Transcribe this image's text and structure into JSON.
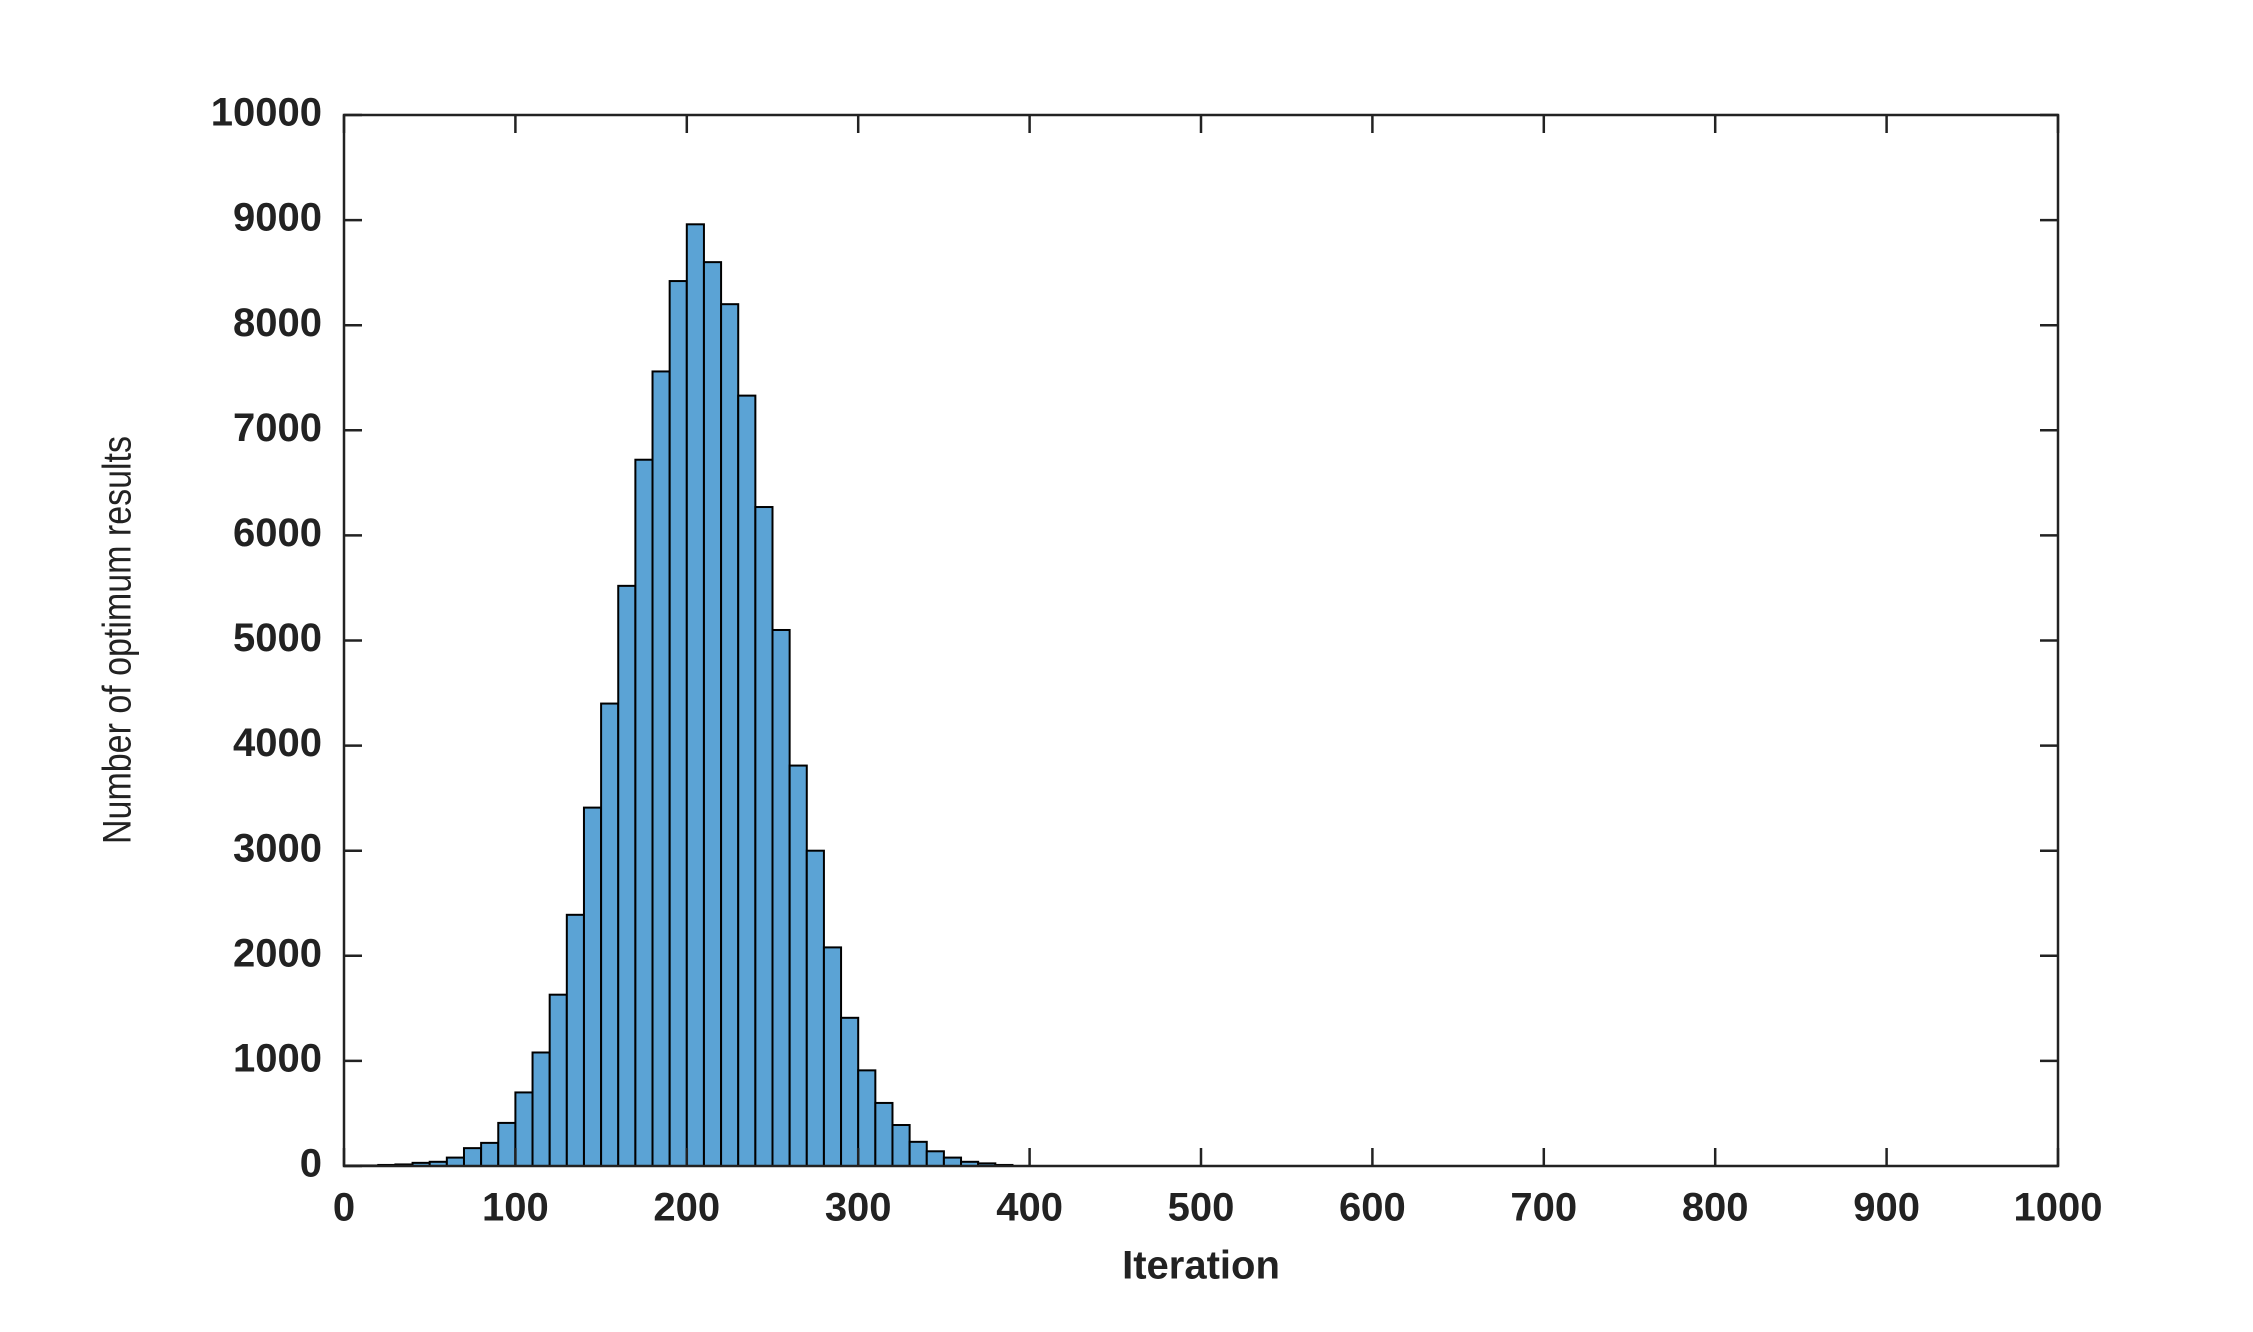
{
  "chart_data": {
    "type": "histogram",
    "xlabel": "Iteration",
    "ylabel": "Number of optimum results",
    "bins": [
      0,
      10,
      20,
      30,
      40,
      50,
      60,
      70,
      80,
      90,
      100,
      110,
      120,
      130,
      140,
      150,
      160,
      170,
      180,
      190,
      200,
      210,
      220,
      230,
      240,
      250,
      260,
      270,
      280,
      290,
      300,
      310,
      320,
      330,
      340,
      350,
      360,
      370,
      380,
      390
    ],
    "values": [
      5,
      5,
      10,
      15,
      30,
      40,
      80,
      170,
      220,
      410,
      700,
      1080,
      1630,
      2390,
      3410,
      4400,
      5520,
      6720,
      7560,
      8420,
      8960,
      8600,
      8200,
      7330,
      6270,
      5100,
      3810,
      3000,
      2080,
      1410,
      910,
      600,
      390,
      230,
      140,
      80,
      40,
      25,
      10
    ],
    "color": "#5ba3d5",
    "edgecolor": "#000000",
    "xlim": [
      0,
      1000
    ],
    "ylim": [
      0,
      10000
    ],
    "xticks": [
      0,
      100,
      200,
      300,
      400,
      500,
      600,
      700,
      800,
      900,
      1000
    ],
    "yticks": [
      0,
      1000,
      2000,
      3000,
      4000,
      5000,
      6000,
      7000,
      8000,
      9000,
      10000
    ],
    "grid": false
  }
}
